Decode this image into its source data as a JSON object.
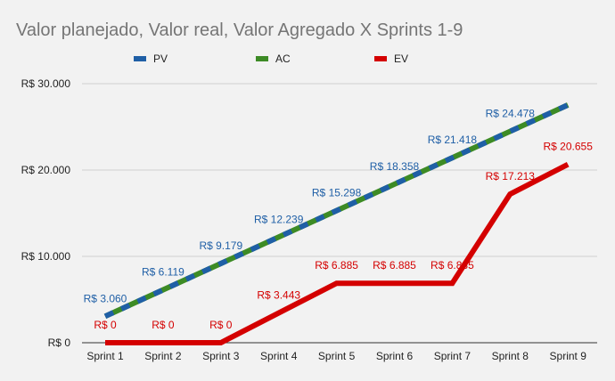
{
  "chart_data": {
    "type": "line",
    "title": "Valor planejado, Valor real, Valor Agregado X Sprints 1-9",
    "categories": [
      "Sprint 1",
      "Sprint 2",
      "Sprint 3",
      "Sprint 4",
      "Sprint 5",
      "Sprint 6",
      "Sprint 7",
      "Sprint 8",
      "Sprint 9"
    ],
    "ylim": [
      0,
      30000
    ],
    "yticks": [
      {
        "value": 0,
        "label": "R$ 0"
      },
      {
        "value": 10000,
        "label": "R$ 10.000"
      },
      {
        "value": 20000,
        "label": "R$ 20.000"
      },
      {
        "value": 30000,
        "label": "R$ 30.000"
      }
    ],
    "grid": true,
    "legend_position": "top",
    "series": [
      {
        "name": "PV",
        "color": "#1f5fa6",
        "values": [
          3060,
          6119,
          9179,
          12239,
          15298,
          18358,
          21418,
          24478,
          27537
        ],
        "labels": [
          "R$ 3.060",
          "R$ 6.119",
          "R$ 9.179",
          "R$ 12.239",
          "R$ 15.298",
          "R$ 18.358",
          "R$ 21.418",
          "R$ 24.478",
          ""
        ]
      },
      {
        "name": "AC",
        "color": "#3d8b25",
        "values": [
          3060,
          6119,
          9179,
          12239,
          15298,
          18358,
          21418,
          24478,
          27537
        ],
        "labels": []
      },
      {
        "name": "EV",
        "color": "#d40000",
        "values": [
          0,
          0,
          0,
          3443,
          6885,
          6885,
          6885,
          17213,
          20655
        ],
        "labels": [
          "R$ 0",
          "R$ 0",
          "R$ 0",
          "R$ 3.443",
          "R$ 6.885",
          "R$ 6.885",
          "R$ 6.885",
          "R$ 17.213",
          "R$ 20.655"
        ]
      }
    ]
  }
}
